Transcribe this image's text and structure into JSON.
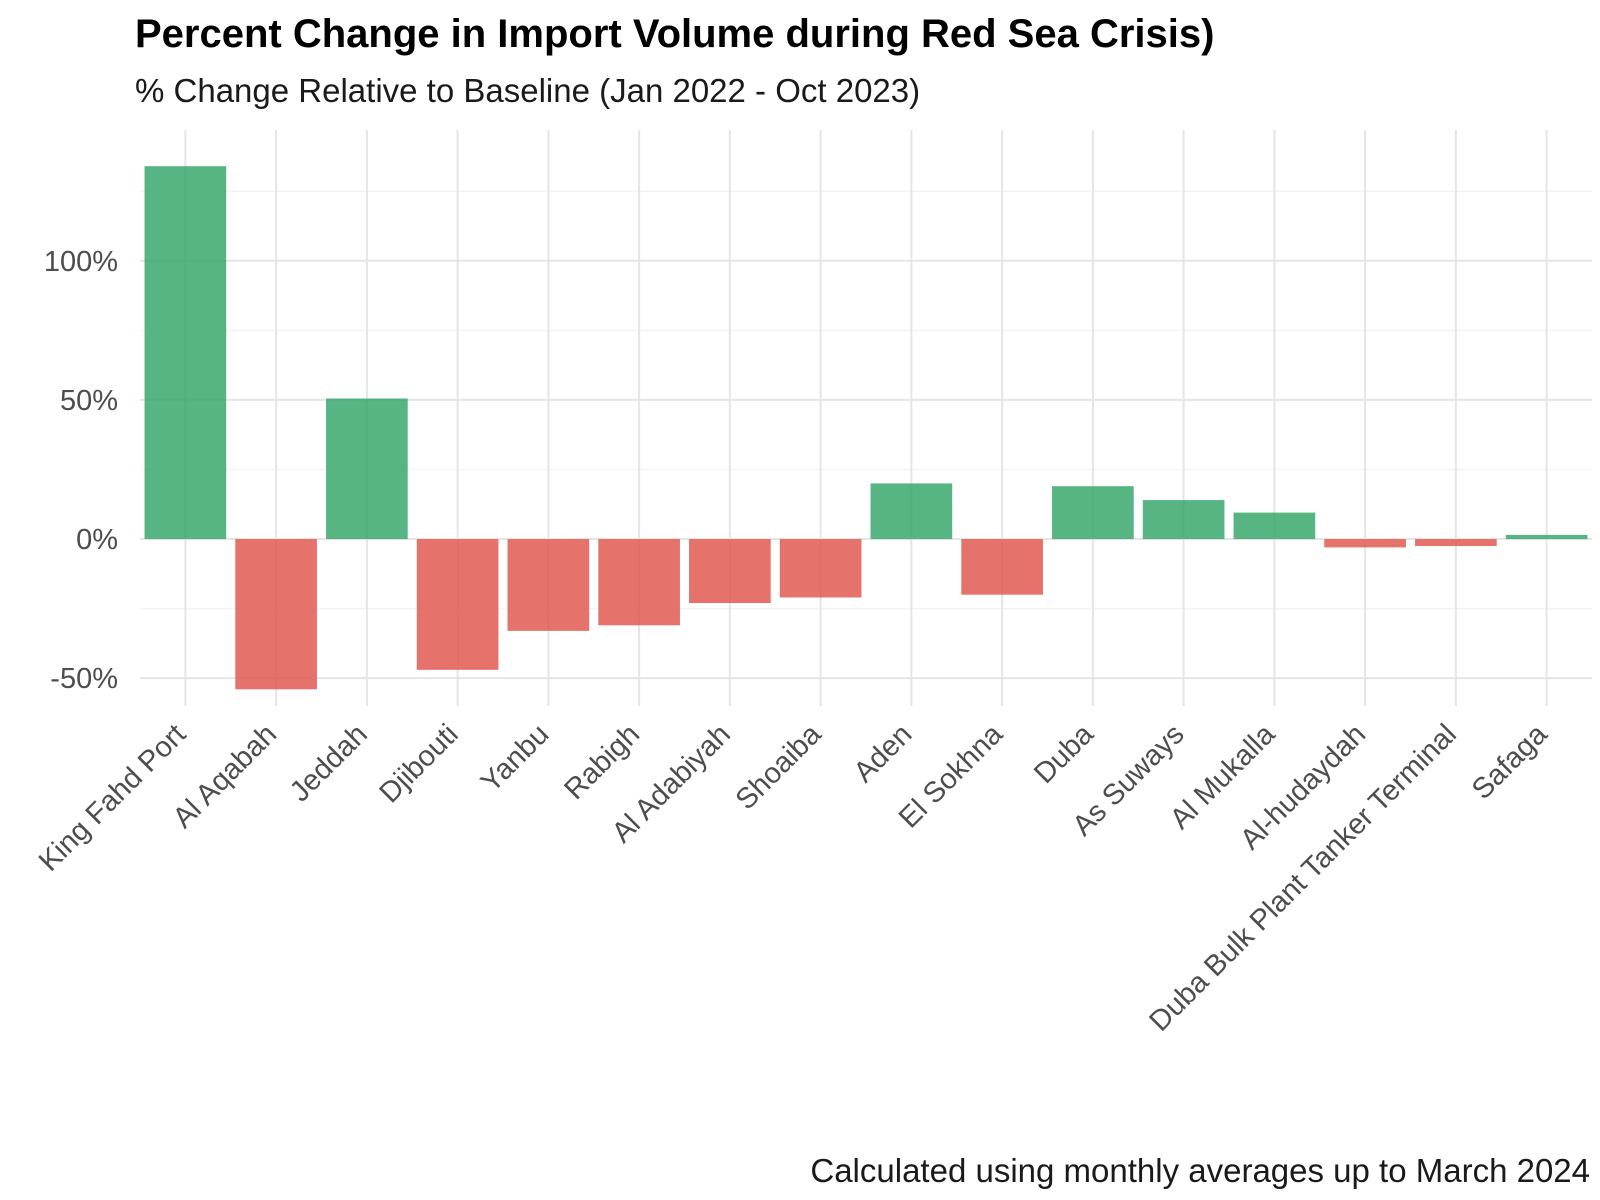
{
  "chart_data": {
    "type": "bar",
    "title": "Percent Change in Import Volume during Red Sea Crisis)",
    "subtitle": "% Change Relative to Baseline (Jan 2022 - Oct 2023)",
    "caption": "Calculated using monthly averages up to March 2024",
    "xlabel": "",
    "ylabel": "",
    "categories": [
      "King Fahd Port",
      "Al Aqabah",
      "Jeddah",
      "Djibouti",
      "Yanbu",
      "Rabigh",
      "Al Adabiyah",
      "Shoaiba",
      "Aden",
      "El Sokhna",
      "Duba",
      "As Suways",
      "Al Mukalla",
      "Al-hudaydah",
      "Duba Bulk Plant Tanker Terminal",
      "Safaga"
    ],
    "values": [
      134,
      -54,
      50.5,
      -47,
      -33,
      -31,
      -23,
      -21,
      20,
      -20,
      19,
      14,
      9.5,
      -3,
      -2.5,
      1.5
    ],
    "ylim": [
      -60,
      147
    ],
    "yticks": [
      -50,
      0,
      50,
      100
    ],
    "ytick_labels": [
      "-50%",
      "0%",
      "50%",
      "100%"
    ],
    "grid": true,
    "legend": "none",
    "colors": {
      "positive": "#3aa76d",
      "negative": "#e05a52",
      "grid_major": "#e5e5e5",
      "grid_minor": "#f3f3f3",
      "tick_text": "#4d4d4d"
    }
  }
}
